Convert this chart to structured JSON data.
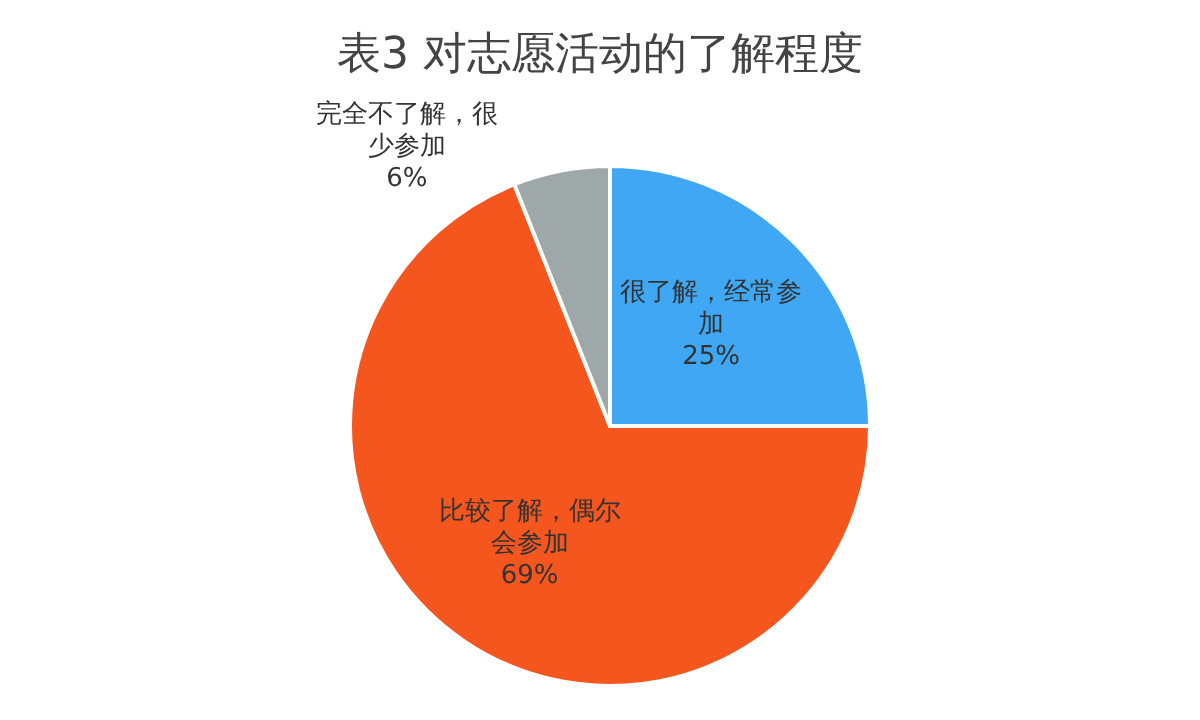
{
  "chart_data": {
    "type": "pie",
    "title": "表3 对志愿活动的了解程度",
    "categories": [
      "很了解，经常参加",
      "比较了解，偶尔会参加",
      "完全不了解，很少参加"
    ],
    "values": [
      25,
      69,
      6
    ],
    "colors": [
      "#3fa7f3",
      "#f4561e",
      "#9ea8a8"
    ],
    "value_labels": [
      "25%",
      "69%",
      "6%"
    ],
    "legend": false
  }
}
